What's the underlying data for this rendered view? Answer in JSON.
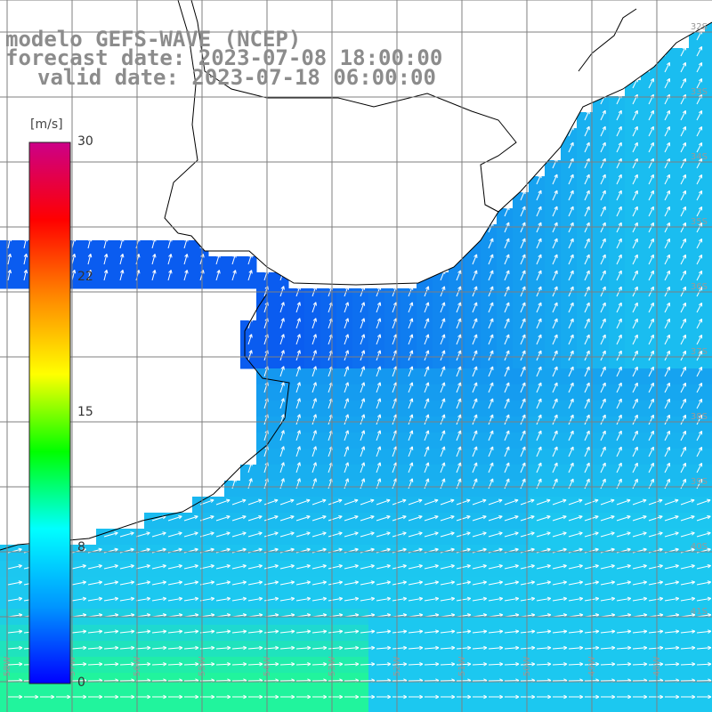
{
  "title": {
    "model": "modelo GEFS-WAVE (NCEP)",
    "forecast": "forecast date: 2023-07-08 18:00:00",
    "valid": "valid date: 2023-07-18 06:00:00"
  },
  "colorbar": {
    "unit": "[m/s]",
    "ticks": [
      "30",
      "22",
      "15",
      "8",
      "0"
    ],
    "tick_values": [
      30,
      22,
      15,
      8,
      0
    ],
    "colors": [
      "#0000ff",
      "#0096ff",
      "#00ffff",
      "#00ff00",
      "#ffff00",
      "#ff8800",
      "#ff0000",
      "#cc0088"
    ]
  },
  "lat_labels": [
    "32S",
    "33S",
    "34S",
    "35S",
    "36S",
    "37S",
    "38S",
    "39S",
    "40S",
    "41S"
  ],
  "lon_labels": [
    "58W",
    "57W",
    "56W",
    "55W",
    "54W",
    "53W",
    "52W",
    "51W",
    "50W",
    "49W",
    "48W"
  ],
  "colors": {
    "land": "#ffffff",
    "coast": "#000000",
    "grid": "#7f7f7f",
    "arrow": "#ffffff",
    "calm": "#0a5cf0",
    "moderate": "#1cc8f0",
    "strong": "#22ff88"
  }
}
